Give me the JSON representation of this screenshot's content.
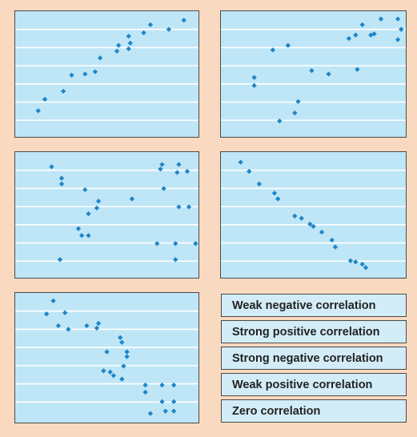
{
  "panels": [
    {
      "id": "a",
      "points": [
        [
          0.09,
          0.82
        ],
        [
          0.13,
          0.72
        ],
        [
          0.24,
          0.65
        ],
        [
          0.29,
          0.51
        ],
        [
          0.37,
          0.5
        ],
        [
          0.43,
          0.48
        ],
        [
          0.46,
          0.36
        ],
        [
          0.56,
          0.3
        ],
        [
          0.57,
          0.25
        ],
        [
          0.63,
          0.28
        ],
        [
          0.64,
          0.23
        ],
        [
          0.63,
          0.17
        ],
        [
          0.72,
          0.14
        ],
        [
          0.76,
          0.07
        ],
        [
          0.87,
          0.11
        ],
        [
          0.96,
          0.03
        ]
      ]
    },
    {
      "id": "b",
      "points": [
        [
          0.15,
          0.53
        ],
        [
          0.15,
          0.6
        ],
        [
          0.26,
          0.29
        ],
        [
          0.35,
          0.25
        ],
        [
          0.39,
          0.84
        ],
        [
          0.3,
          0.91
        ],
        [
          0.41,
          0.74
        ],
        [
          0.49,
          0.47
        ],
        [
          0.59,
          0.5
        ],
        [
          0.76,
          0.46
        ],
        [
          0.71,
          0.19
        ],
        [
          0.75,
          0.16
        ],
        [
          0.79,
          0.07
        ],
        [
          0.84,
          0.16
        ],
        [
          0.86,
          0.15
        ],
        [
          0.9,
          0.02
        ],
        [
          1.0,
          0.02
        ],
        [
          1.02,
          0.11
        ],
        [
          1.0,
          0.2
        ],
        [
          1.02,
          0.11
        ]
      ]
    },
    {
      "id": "c",
      "points": [
        [
          0.17,
          0.08
        ],
        [
          0.23,
          0.18
        ],
        [
          0.23,
          0.23
        ],
        [
          0.37,
          0.28
        ],
        [
          0.39,
          0.49
        ],
        [
          0.44,
          0.44
        ],
        [
          0.45,
          0.38
        ],
        [
          0.65,
          0.36
        ],
        [
          0.33,
          0.62
        ],
        [
          0.39,
          0.68
        ],
        [
          0.35,
          0.68
        ],
        [
          0.22,
          0.89
        ],
        [
          0.83,
          0.06
        ],
        [
          0.82,
          0.1
        ],
        [
          0.84,
          0.27
        ],
        [
          0.93,
          0.06
        ],
        [
          0.98,
          0.12
        ],
        [
          0.92,
          0.13
        ],
        [
          0.99,
          0.43
        ],
        [
          0.93,
          0.43
        ],
        [
          0.8,
          0.75
        ],
        [
          0.91,
          0.75
        ],
        [
          1.03,
          0.75
        ],
        [
          0.91,
          0.89
        ]
      ]
    },
    {
      "id": "d",
      "points": [
        [
          0.07,
          0.04
        ],
        [
          0.12,
          0.12
        ],
        [
          0.18,
          0.23
        ],
        [
          0.27,
          0.31
        ],
        [
          0.29,
          0.36
        ],
        [
          0.39,
          0.51
        ],
        [
          0.43,
          0.53
        ],
        [
          0.48,
          0.58
        ],
        [
          0.5,
          0.6
        ],
        [
          0.55,
          0.65
        ],
        [
          0.61,
          0.72
        ],
        [
          0.63,
          0.78
        ],
        [
          0.72,
          0.9
        ],
        [
          0.75,
          0.91
        ],
        [
          0.79,
          0.93
        ],
        [
          0.81,
          0.96
        ]
      ]
    },
    {
      "id": "e",
      "points": [
        [
          0.18,
          0.02
        ],
        [
          0.14,
          0.13
        ],
        [
          0.25,
          0.12
        ],
        [
          0.21,
          0.23
        ],
        [
          0.27,
          0.26
        ],
        [
          0.38,
          0.23
        ],
        [
          0.45,
          0.21
        ],
        [
          0.44,
          0.25
        ],
        [
          0.58,
          0.33
        ],
        [
          0.5,
          0.45
        ],
        [
          0.59,
          0.37
        ],
        [
          0.62,
          0.45
        ],
        [
          0.62,
          0.49
        ],
        [
          0.48,
          0.61
        ],
        [
          0.6,
          0.57
        ],
        [
          0.52,
          0.62
        ],
        [
          0.54,
          0.65
        ],
        [
          0.59,
          0.68
        ],
        [
          0.73,
          0.73
        ],
        [
          0.83,
          0.73
        ],
        [
          0.9,
          0.73
        ],
        [
          0.73,
          0.79
        ],
        [
          0.83,
          0.87
        ],
        [
          0.9,
          0.87
        ],
        [
          0.85,
          0.95
        ],
        [
          0.9,
          0.95
        ],
        [
          0.76,
          0.97
        ]
      ]
    }
  ],
  "labels": [
    "Weak negative correlation",
    "Strong positive correlation",
    "Strong negative correlation",
    "Weak positive correlation",
    "Zero correlation"
  ]
}
